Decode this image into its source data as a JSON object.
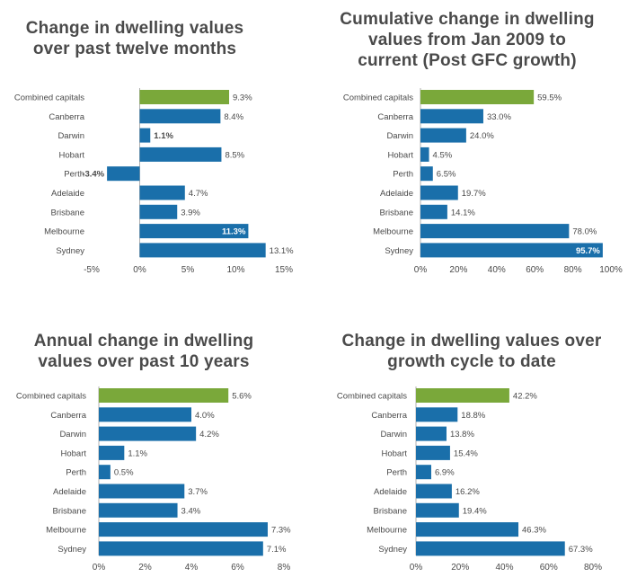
{
  "chart_data": [
    {
      "type": "bar",
      "orientation": "horizontal",
      "title": "Change in dwelling values over past twelve months",
      "title_lines": [
        "Change in dwelling values",
        "over past twelve months"
      ],
      "categories": [
        "Combined capitals",
        "Canberra",
        "Darwin",
        "Hobart",
        "Perth",
        "Adelaide",
        "Brisbane",
        "Melbourne",
        "Sydney"
      ],
      "values": [
        9.3,
        8.4,
        1.1,
        8.5,
        -3.4,
        4.7,
        3.9,
        11.3,
        13.1
      ],
      "labels": [
        "9.3%",
        "8.4%",
        "1.1%",
        "8.5%",
        "-3.4%",
        "4.7%",
        "3.9%",
        "11.3%",
        "13.1%"
      ],
      "xlim": [
        -5,
        15
      ],
      "ticks": [
        -5,
        0,
        5,
        10,
        15
      ],
      "tick_labels": [
        "-5%",
        "0%",
        "5%",
        "10%",
        "15%"
      ],
      "xlabel": "",
      "ylabel": ""
    },
    {
      "type": "bar",
      "orientation": "horizontal",
      "title": "Cumulative change in dwelling values from Jan 2009 to current (Post GFC growth)",
      "title_lines": [
        "Cumulative change in dwelling",
        "values from Jan 2009 to",
        "current (Post GFC growth)"
      ],
      "categories": [
        "Combined capitals",
        "Canberra",
        "Darwin",
        "Hobart",
        "Perth",
        "Adelaide",
        "Brisbane",
        "Melbourne",
        "Sydney"
      ],
      "values": [
        59.5,
        33.0,
        24.0,
        4.5,
        6.5,
        19.7,
        14.1,
        78.0,
        95.7
      ],
      "labels": [
        "59.5%",
        "33.0%",
        "24.0%",
        "4.5%",
        "6.5%",
        "19.7%",
        "14.1%",
        "78.0%",
        "95.7%"
      ],
      "xlim": [
        0,
        100
      ],
      "ticks": [
        0,
        20,
        40,
        60,
        80,
        100
      ],
      "tick_labels": [
        "0%",
        "20%",
        "40%",
        "60%",
        "80%",
        "100%"
      ],
      "xlabel": "",
      "ylabel": ""
    },
    {
      "type": "bar",
      "orientation": "horizontal",
      "title": "Annual change in dwelling values over past 10 years",
      "title_lines": [
        "Annual change in dwelling",
        "values over past 10 years"
      ],
      "categories": [
        "Combined capitals",
        "Canberra",
        "Darwin",
        "Hobart",
        "Perth",
        "Adelaide",
        "Brisbane",
        "Melbourne",
        "Sydney"
      ],
      "values": [
        5.6,
        4.0,
        4.2,
        1.1,
        0.5,
        3.7,
        3.4,
        7.3,
        7.1
      ],
      "labels": [
        "5.6%",
        "4.0%",
        "4.2%",
        "1.1%",
        "0.5%",
        "3.7%",
        "3.4%",
        "7.3%",
        "7.1%"
      ],
      "xlim": [
        0,
        8
      ],
      "ticks": [
        0,
        2,
        4,
        6,
        8
      ],
      "tick_labels": [
        "0%",
        "2%",
        "4%",
        "6%",
        "8%"
      ],
      "xlabel": "",
      "ylabel": ""
    },
    {
      "type": "bar",
      "orientation": "horizontal",
      "title": "Change in dwelling values over growth cycle to date",
      "title_lines": [
        "Change in dwelling values over",
        "growth cycle to date"
      ],
      "categories": [
        "Combined capitals",
        "Canberra",
        "Darwin",
        "Hobart",
        "Perth",
        "Adelaide",
        "Brisbane",
        "Melbourne",
        "Sydney"
      ],
      "values": [
        42.2,
        18.8,
        13.8,
        15.4,
        6.9,
        16.2,
        19.4,
        46.3,
        67.3
      ],
      "labels": [
        "42.2%",
        "18.8%",
        "13.8%",
        "15.4%",
        "6.9%",
        "16.2%",
        "19.4%",
        "46.3%",
        "67.3%"
      ],
      "xlim": [
        0,
        80
      ],
      "ticks": [
        0,
        20,
        40,
        60,
        80
      ],
      "tick_labels": [
        "0%",
        "20%",
        "40%",
        "60%",
        "80%"
      ],
      "xlabel": "",
      "ylabel": ""
    }
  ],
  "colors": {
    "combined": "#7aa83a",
    "city": "#1a6faa",
    "text": "#4a4a4a",
    "axis": "#b0b0b0"
  }
}
